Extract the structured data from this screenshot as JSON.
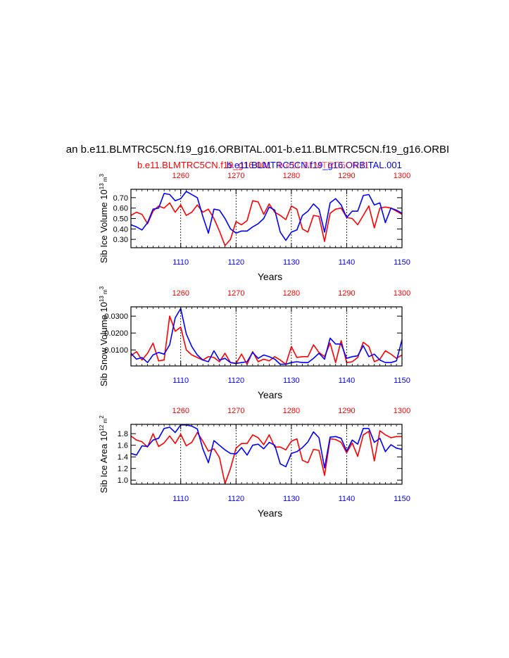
{
  "title": "an b.e11.BLMTRC5CN.f19_g16.ORBITAL.001-b.e11.BLMTRC5CN.f19_g16.ORBI",
  "legend": {
    "red_label": "b.e11.BLMTRC5CN.f19_g16.001",
    "blue_label": "b.e11.BLMTRC5CN.f19_g16.ORBITAL.001",
    "overlap_label": "b.e11.BLMTRC5CN.f1"
  },
  "colors": {
    "red": "#ff0000",
    "blue": "#0000ff",
    "axis": "#000000",
    "grid": "#000000"
  },
  "chart_data": [
    {
      "type": "line",
      "ylabel": "Sib Ice Volume 10",
      "ylabel_exp": "13",
      "ylabel_unit": " m",
      "ylabel_unit_exp": "3",
      "xlabel": "Years",
      "ylim": [
        0.22,
        0.78
      ],
      "yticks": [
        0.3,
        0.4,
        0.5,
        0.6,
        0.7
      ],
      "ytick_labels": [
        "0.30",
        "0.40",
        "0.50",
        "0.60",
        "0.70"
      ],
      "xlim_bottom": [
        1101,
        1150
      ],
      "xticks_bottom": [
        1110,
        1120,
        1130,
        1140,
        1150
      ],
      "xlim_top": [
        1251,
        1300
      ],
      "xticks_top": [
        1260,
        1270,
        1280,
        1290,
        1300
      ],
      "grid_x": [
        1110,
        1120,
        1130,
        1140
      ],
      "series": [
        {
          "name": "b.e11.BLMTRC5CN.f19_g16.ORBITAL.001",
          "color": "blue",
          "x": [
            1101,
            1102,
            1103,
            1104,
            1105,
            1106,
            1107,
            1108,
            1109,
            1110,
            1111,
            1112,
            1113,
            1114,
            1115,
            1116,
            1117,
            1118,
            1119,
            1120,
            1121,
            1122,
            1123,
            1124,
            1125,
            1126,
            1127,
            1128,
            1129,
            1130,
            1131,
            1132,
            1133,
            1134,
            1135,
            1136,
            1137,
            1138,
            1139,
            1140,
            1141,
            1142,
            1143,
            1144,
            1145,
            1146,
            1147,
            1148,
            1149,
            1150
          ],
          "values": [
            0.44,
            0.42,
            0.39,
            0.46,
            0.59,
            0.6,
            0.74,
            0.73,
            0.67,
            0.69,
            0.76,
            0.73,
            0.7,
            0.52,
            0.36,
            0.59,
            0.58,
            0.5,
            0.4,
            0.36,
            0.38,
            0.38,
            0.42,
            0.45,
            0.5,
            0.61,
            0.58,
            0.37,
            0.29,
            0.37,
            0.39,
            0.53,
            0.57,
            0.64,
            0.59,
            0.37,
            0.65,
            0.69,
            0.63,
            0.51,
            0.57,
            0.57,
            0.72,
            0.73,
            0.63,
            0.65,
            0.46,
            0.6,
            0.58,
            0.55
          ]
        },
        {
          "name": "b.e11.BLMTRC5CN.f19_g16.001",
          "color": "red",
          "x": [
            1101,
            1102,
            1103,
            1104,
            1105,
            1106,
            1107,
            1108,
            1109,
            1110,
            1111,
            1112,
            1113,
            1114,
            1115,
            1116,
            1117,
            1118,
            1119,
            1120,
            1121,
            1122,
            1123,
            1124,
            1125,
            1126,
            1127,
            1128,
            1129,
            1130,
            1131,
            1132,
            1133,
            1134,
            1135,
            1136,
            1137,
            1138,
            1139,
            1140,
            1141,
            1142,
            1143,
            1144,
            1145,
            1146,
            1147,
            1148,
            1149,
            1150
          ],
          "values": [
            0.53,
            0.56,
            0.54,
            0.45,
            0.57,
            0.62,
            0.6,
            0.65,
            0.56,
            0.63,
            0.53,
            0.56,
            0.63,
            0.56,
            0.59,
            0.5,
            0.38,
            0.24,
            0.3,
            0.47,
            0.44,
            0.48,
            0.67,
            0.66,
            0.54,
            0.64,
            0.56,
            0.53,
            0.49,
            0.62,
            0.59,
            0.4,
            0.37,
            0.53,
            0.52,
            0.28,
            0.55,
            0.59,
            0.6,
            0.51,
            0.5,
            0.44,
            0.53,
            0.62,
            0.41,
            0.6,
            0.61,
            0.6,
            0.57,
            0.54
          ]
        }
      ]
    },
    {
      "type": "line",
      "ylabel": "Sib Snow Volume 10",
      "ylabel_exp": "13",
      "ylabel_unit": " m",
      "ylabel_unit_exp": "3",
      "xlabel": "Years",
      "ylim": [
        0.0005,
        0.0355
      ],
      "yticks": [
        0.01,
        0.02,
        0.03
      ],
      "ytick_labels": [
        "0.0100",
        "0.0200",
        "0.0300"
      ],
      "xlim_bottom": [
        1101,
        1150
      ],
      "xticks_bottom": [
        1110,
        1120,
        1130,
        1140,
        1150
      ],
      "xlim_top": [
        1251,
        1300
      ],
      "xticks_top": [
        1260,
        1270,
        1280,
        1290,
        1300
      ],
      "grid_x": [
        1110,
        1120,
        1130,
        1140
      ],
      "series": [
        {
          "name": "b.e11.BLMTRC5CN.f19_g16.ORBITAL.001",
          "color": "blue",
          "x": [
            1101,
            1102,
            1103,
            1104,
            1105,
            1106,
            1107,
            1108,
            1109,
            1110,
            1111,
            1112,
            1113,
            1114,
            1115,
            1116,
            1117,
            1118,
            1119,
            1120,
            1121,
            1122,
            1123,
            1124,
            1125,
            1126,
            1127,
            1128,
            1129,
            1130,
            1131,
            1132,
            1133,
            1134,
            1135,
            1136,
            1137,
            1138,
            1139,
            1140,
            1141,
            1142,
            1143,
            1144,
            1145,
            1146,
            1147,
            1148,
            1149,
            1150
          ],
          "values": [
            0.008,
            0.0045,
            0.0055,
            0.0025,
            0.007,
            0.0085,
            0.0075,
            0.013,
            0.029,
            0.0345,
            0.0195,
            0.012,
            0.007,
            0.004,
            0.003,
            0.0095,
            0.004,
            0.005,
            0.0025,
            0.002,
            0.0025,
            0.003,
            0.0085,
            0.005,
            0.007,
            0.006,
            0.0045,
            0.0015,
            0.0015,
            0.0025,
            0.003,
            0.0025,
            0.0025,
            0.005,
            0.008,
            0.0045,
            0.017,
            0.0135,
            0.0135,
            0.005,
            0.006,
            0.0065,
            0.0125,
            0.006,
            0.0075,
            0.004,
            0.0025,
            0.0025,
            0.0035,
            0.016
          ]
        },
        {
          "name": "b.e11.BLMTRC5CN.f19_g16.001",
          "color": "red",
          "x": [
            1101,
            1102,
            1103,
            1104,
            1105,
            1106,
            1107,
            1108,
            1109,
            1110,
            1111,
            1112,
            1113,
            1114,
            1115,
            1116,
            1117,
            1118,
            1119,
            1120,
            1121,
            1122,
            1123,
            1124,
            1125,
            1126,
            1127,
            1128,
            1129,
            1130,
            1131,
            1132,
            1133,
            1134,
            1135,
            1136,
            1137,
            1138,
            1139,
            1140,
            1141,
            1142,
            1143,
            1144,
            1145,
            1146,
            1147,
            1148,
            1149,
            1150
          ],
          "values": [
            0.0065,
            0.009,
            0.004,
            0.008,
            0.014,
            0.0035,
            0.004,
            0.03,
            0.021,
            0.0235,
            0.01,
            0.007,
            0.0055,
            0.004,
            0.006,
            0.0055,
            0.003,
            0.008,
            0.0025,
            0.002,
            0.0075,
            0.0015,
            0.009,
            0.003,
            0.0045,
            0.0035,
            0.006,
            0.004,
            0.0015,
            0.012,
            0.0055,
            0.006,
            0.006,
            0.013,
            0.0085,
            0.006,
            0.014,
            0.0025,
            0.0155,
            0.0025,
            0.003,
            0.0055,
            0.0145,
            0.012,
            0.003,
            0.0045,
            0.0095,
            0.0075,
            0.005,
            0.007
          ]
        }
      ]
    },
    {
      "type": "line",
      "ylabel": "Sib Ice Area 10",
      "ylabel_exp": "12",
      "ylabel_unit": " m",
      "ylabel_unit_exp": "2",
      "xlabel": "Years",
      "ylim": [
        0.93,
        1.96
      ],
      "yticks": [
        1.0,
        1.2,
        1.4,
        1.6,
        1.8
      ],
      "ytick_labels": [
        "1.0",
        "1.2",
        "1.4",
        "1.6",
        "1.8"
      ],
      "xlim_bottom": [
        1101,
        1150
      ],
      "xticks_bottom": [
        1110,
        1120,
        1130,
        1140,
        1150
      ],
      "xlim_top": [
        1251,
        1300
      ],
      "xticks_top": [
        1260,
        1270,
        1280,
        1290,
        1300
      ],
      "grid_x": [
        1110,
        1120,
        1130,
        1140
      ],
      "series": [
        {
          "name": "b.e11.BLMTRC5CN.f19_g16.ORBITAL.001",
          "color": "blue",
          "x": [
            1101,
            1102,
            1103,
            1104,
            1105,
            1106,
            1107,
            1108,
            1109,
            1110,
            1111,
            1112,
            1113,
            1114,
            1115,
            1116,
            1117,
            1118,
            1119,
            1120,
            1121,
            1122,
            1123,
            1124,
            1125,
            1126,
            1127,
            1128,
            1129,
            1130,
            1131,
            1132,
            1133,
            1134,
            1135,
            1136,
            1137,
            1138,
            1139,
            1140,
            1141,
            1142,
            1143,
            1144,
            1145,
            1146,
            1147,
            1148,
            1149,
            1150
          ],
          "values": [
            1.46,
            1.43,
            1.59,
            1.58,
            1.69,
            1.72,
            1.89,
            1.91,
            1.82,
            1.95,
            1.95,
            1.93,
            1.88,
            1.54,
            1.3,
            1.68,
            1.6,
            1.52,
            1.46,
            1.45,
            1.56,
            1.43,
            1.6,
            1.62,
            1.54,
            1.65,
            1.6,
            1.28,
            1.23,
            1.46,
            1.49,
            1.56,
            1.66,
            1.83,
            1.73,
            1.21,
            1.74,
            1.75,
            1.72,
            1.5,
            1.69,
            1.62,
            1.89,
            1.89,
            1.65,
            1.72,
            1.49,
            1.61,
            1.55,
            1.53
          ]
        },
        {
          "name": "b.e11.BLMTRC5CN.f19_g16.001",
          "color": "red",
          "x": [
            1101,
            1102,
            1103,
            1104,
            1105,
            1106,
            1107,
            1108,
            1109,
            1110,
            1111,
            1112,
            1113,
            1114,
            1115,
            1116,
            1117,
            1118,
            1119,
            1120,
            1121,
            1122,
            1123,
            1124,
            1125,
            1126,
            1127,
            1128,
            1129,
            1130,
            1131,
            1132,
            1133,
            1134,
            1135,
            1136,
            1137,
            1138,
            1139,
            1140,
            1141,
            1142,
            1143,
            1144,
            1145,
            1146,
            1147,
            1148,
            1149,
            1150
          ],
          "values": [
            1.76,
            1.69,
            1.66,
            1.57,
            1.8,
            1.58,
            1.64,
            1.76,
            1.63,
            1.79,
            1.59,
            1.65,
            1.82,
            1.67,
            1.5,
            1.54,
            1.39,
            0.94,
            1.2,
            1.55,
            1.63,
            1.63,
            1.78,
            1.73,
            1.61,
            1.78,
            1.57,
            1.57,
            1.52,
            1.67,
            1.71,
            1.34,
            1.3,
            1.53,
            1.51,
            1.08,
            1.71,
            1.7,
            1.65,
            1.47,
            1.64,
            1.41,
            1.78,
            1.84,
            1.33,
            1.85,
            1.78,
            1.73,
            1.75,
            1.75
          ]
        }
      ]
    }
  ]
}
